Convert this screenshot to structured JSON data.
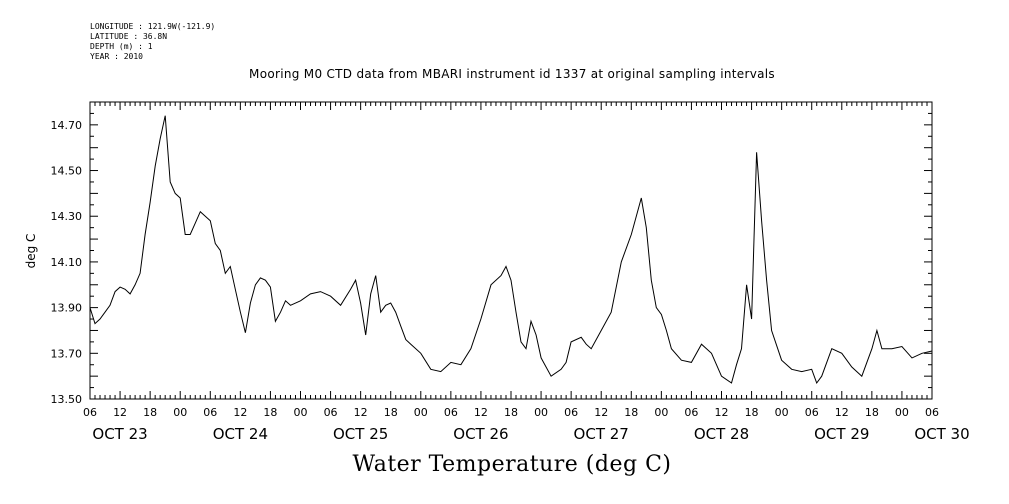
{
  "header": {
    "longitude": "LONGITUDE : 121.9W(-121.9)",
    "latitude": "LATITUDE : 36.8N",
    "depth": "DEPTH (m) : 1",
    "year": "YEAR : 2010"
  },
  "chart_data": {
    "type": "line",
    "title": "Mooring M0 CTD data from MBARI instrument id 1337 at original sampling intervals",
    "xlabel": "Water Temperature (deg C)",
    "ylabel": "deg C",
    "ylim": [
      13.5,
      14.8
    ],
    "yticks": [
      "13.50",
      "13.70",
      "13.90",
      "14.10",
      "14.30",
      "14.50",
      "14.70"
    ],
    "xlim": [
      "2010-10-23T06:00",
      "2010-10-30T06:00"
    ],
    "hour_labels": [
      "06",
      "12",
      "18",
      "00",
      "06",
      "12",
      "18",
      "00",
      "06",
      "12",
      "18",
      "00",
      "06",
      "12",
      "18",
      "00",
      "06",
      "12",
      "18",
      "00",
      "06",
      "12",
      "18",
      "00",
      "06",
      "12",
      "18",
      "00",
      "06"
    ],
    "date_labels": [
      "OCT 23",
      "OCT 24",
      "OCT 25",
      "OCT 26",
      "OCT 27",
      "OCT 28",
      "OCT 29",
      "OCT 30"
    ],
    "grid": false,
    "series": [
      {
        "x": [
          "10-23 06:00",
          "10-23 07:00",
          "10-23 08:00",
          "10-23 09:00",
          "10-23 10:00",
          "10-23 11:00",
          "10-23 12:00",
          "10-23 13:00",
          "10-23 14:00",
          "10-23 15:00",
          "10-23 16:00",
          "10-23 17:00",
          "10-23 18:00",
          "10-23 19:00",
          "10-23 20:00",
          "10-23 21:00",
          "10-23 22:00",
          "10-23 23:00",
          "10-24 00:00",
          "10-24 01:00",
          "10-24 02:00",
          "10-24 03:00",
          "10-24 04:00",
          "10-24 05:00",
          "10-24 06:00",
          "10-24 07:00",
          "10-24 08:00",
          "10-24 09:00",
          "10-24 10:00",
          "10-24 11:00",
          "10-24 12:00",
          "10-24 13:00",
          "10-24 14:00",
          "10-24 15:00",
          "10-24 16:00",
          "10-24 17:00",
          "10-24 18:00",
          "10-24 19:00",
          "10-24 20:00",
          "10-24 21:00",
          "10-24 22:00",
          "10-25 00:00",
          "10-25 02:00",
          "10-25 04:00",
          "10-25 06:00",
          "10-25 08:00",
          "10-25 10:00",
          "10-25 11:00",
          "10-25 12:00",
          "10-25 13:00",
          "10-25 14:00",
          "10-25 15:00",
          "10-25 16:00",
          "10-25 17:00",
          "10-25 18:00",
          "10-25 19:00",
          "10-25 20:00",
          "10-25 21:00",
          "10-25 22:00",
          "10-26 00:00",
          "10-26 02:00",
          "10-26 04:00",
          "10-26 06:00",
          "10-26 08:00",
          "10-26 10:00",
          "10-26 12:00",
          "10-26 14:00",
          "10-26 16:00",
          "10-26 17:00",
          "10-26 18:00",
          "10-26 19:00",
          "10-26 20:00",
          "10-26 21:00",
          "10-26 22:00",
          "10-26 23:00",
          "10-27 00:00",
          "10-27 02:00",
          "10-27 04:00",
          "10-27 05:00",
          "10-27 06:00",
          "10-27 08:00",
          "10-27 09:00",
          "10-27 10:00",
          "10-27 12:00",
          "10-27 14:00",
          "10-27 16:00",
          "10-27 18:00",
          "10-27 20:00",
          "10-27 21:00",
          "10-27 22:00",
          "10-27 23:00",
          "10-28 00:00",
          "10-28 01:00",
          "10-28 02:00",
          "10-28 04:00",
          "10-28 06:00",
          "10-28 08:00",
          "10-28 10:00",
          "10-28 12:00",
          "10-28 14:00",
          "10-28 15:00",
          "10-28 16:00",
          "10-28 17:00",
          "10-28 18:00",
          "10-28 19:00",
          "10-28 20:00",
          "10-28 21:00",
          "10-28 22:00",
          "10-29 00:00",
          "10-29 02:00",
          "10-29 04:00",
          "10-29 06:00",
          "10-29 07:00",
          "10-29 08:00",
          "10-29 10:00",
          "10-29 12:00",
          "10-29 14:00",
          "10-29 16:00",
          "10-29 18:00",
          "10-29 19:00",
          "10-29 20:00",
          "10-29 22:00",
          "10-30 00:00",
          "10-30 02:00",
          "10-30 04:00",
          "10-30 06:00"
        ],
        "y": [
          13.9,
          13.83,
          13.85,
          13.88,
          13.91,
          13.97,
          13.99,
          13.98,
          13.96,
          14.0,
          14.05,
          14.22,
          14.36,
          14.52,
          14.64,
          14.74,
          14.45,
          14.4,
          14.38,
          14.22,
          14.22,
          14.27,
          14.32,
          14.3,
          14.28,
          14.18,
          14.15,
          14.05,
          14.08,
          13.98,
          13.88,
          13.79,
          13.92,
          14.0,
          14.03,
          14.02,
          13.99,
          13.84,
          13.88,
          13.93,
          13.91,
          13.93,
          13.96,
          13.97,
          13.95,
          13.91,
          13.98,
          14.02,
          13.92,
          13.78,
          13.96,
          14.04,
          13.88,
          13.91,
          13.92,
          13.88,
          13.82,
          13.76,
          13.74,
          13.7,
          13.63,
          13.62,
          13.66,
          13.65,
          13.72,
          13.85,
          14.0,
          14.04,
          14.08,
          14.02,
          13.88,
          13.75,
          13.72,
          13.84,
          13.78,
          13.68,
          13.6,
          13.63,
          13.66,
          13.75,
          13.77,
          13.74,
          13.72,
          13.8,
          13.88,
          14.1,
          14.22,
          14.38,
          14.25,
          14.02,
          13.9,
          13.87,
          13.8,
          13.72,
          13.67,
          13.66,
          13.74,
          13.7,
          13.6,
          13.57,
          13.65,
          13.72,
          14.0,
          13.85,
          14.58,
          14.28,
          14.02,
          13.8,
          13.67,
          13.63,
          13.62,
          13.63,
          13.57,
          13.6,
          13.72,
          13.7,
          13.64,
          13.6,
          13.72,
          13.8,
          13.72,
          13.72,
          13.73,
          13.68,
          13.7,
          13.71
        ]
      }
    ]
  }
}
